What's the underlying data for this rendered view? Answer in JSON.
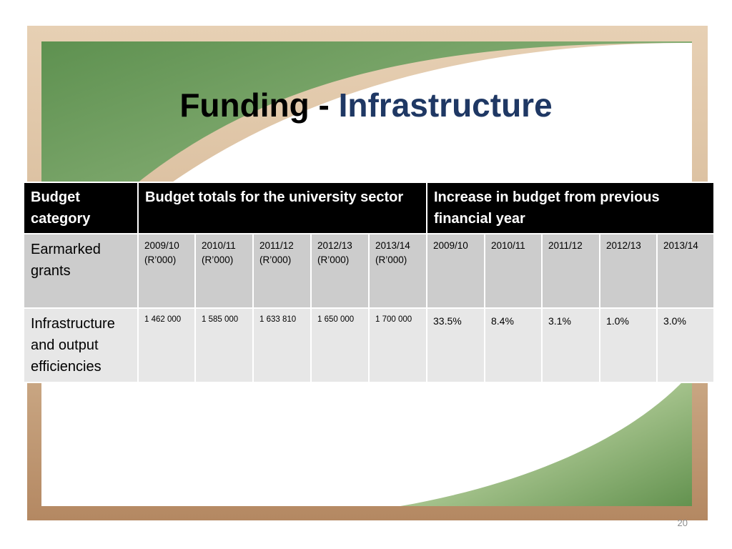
{
  "title": {
    "part1": "Funding - ",
    "part2": "Infrastructure"
  },
  "table": {
    "header": {
      "category": "Budget category",
      "totals": "Budget totals for the university sector",
      "increase": "Increase in budget from previous financial year"
    },
    "row_years": {
      "label": "Earmarked grants",
      "totals_years": [
        {
          "year": "2009/10",
          "unit": "(R’000)"
        },
        {
          "year": "2010/11",
          "unit": "(R’000)"
        },
        {
          "year": "2011/12",
          "unit": "(R’000)"
        },
        {
          "year": "2012/13",
          "unit": "(R’000)"
        },
        {
          "year": "2013/14",
          "unit": "(R’000)"
        }
      ],
      "increase_years": [
        "2009/10",
        "2010/11",
        "2011/12",
        "2012/13",
        "2013/14"
      ]
    },
    "row_data": {
      "label": "Infrastructure and output efficiencies",
      "totals": [
        "1 462 000",
        "1 585 000",
        "1 633 810",
        "1 650 000",
        "1 700 000"
      ],
      "increases": [
        "33.5%",
        "8.4%",
        "3.1%",
        "1.0%",
        "3.0%"
      ]
    }
  },
  "page_number": "20",
  "colors": {
    "title_accent": "#1f3864",
    "frame_green": "#6a9a55",
    "frame_tan": "#c8a078"
  }
}
